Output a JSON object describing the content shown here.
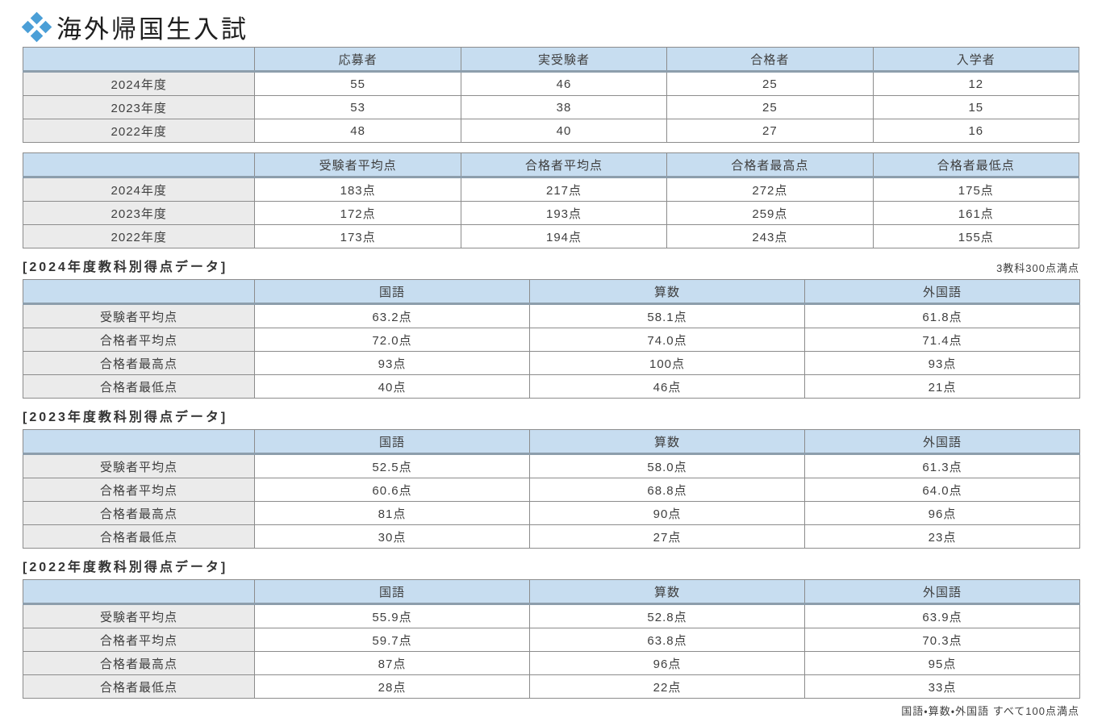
{
  "page": {
    "title": "海外帰国生入試"
  },
  "colors": {
    "header_bg": "#c7ddf0",
    "header_underline": "#8d9eac",
    "label_bg": "#ebebeb",
    "border": "#8c8c8c",
    "icon_blue": "#4b9fd7"
  },
  "summary_table": {
    "columns": [
      "応募者",
      "実受験者",
      "合格者",
      "入学者"
    ],
    "rows": [
      {
        "label": "2024年度",
        "values": [
          "55",
          "46",
          "25",
          "12"
        ]
      },
      {
        "label": "2023年度",
        "values": [
          "53",
          "38",
          "25",
          "15"
        ]
      },
      {
        "label": "2022年度",
        "values": [
          "48",
          "40",
          "27",
          "16"
        ]
      }
    ]
  },
  "score_table": {
    "columns": [
      "受験者平均点",
      "合格者平均点",
      "合格者最高点",
      "合格者最低点"
    ],
    "rows": [
      {
        "label": "2024年度",
        "values": [
          "183点",
          "217点",
          "272点",
          "175点"
        ]
      },
      {
        "label": "2023年度",
        "values": [
          "172点",
          "193点",
          "259点",
          "161点"
        ]
      },
      {
        "label": "2022年度",
        "values": [
          "173点",
          "194点",
          "243点",
          "155点"
        ]
      }
    ],
    "note": "3教科300点満点"
  },
  "subject_sections": [
    {
      "heading": "[2024年度教科別得点データ]",
      "columns": [
        "国語",
        "算数",
        "外国語"
      ],
      "rows": [
        {
          "label": "受験者平均点",
          "values": [
            "63.2点",
            "58.1点",
            "61.8点"
          ]
        },
        {
          "label": "合格者平均点",
          "values": [
            "72.0点",
            "74.0点",
            "71.4点"
          ]
        },
        {
          "label": "合格者最高点",
          "values": [
            "93点",
            "100点",
            "93点"
          ]
        },
        {
          "label": "合格者最低点",
          "values": [
            "40点",
            "46点",
            "21点"
          ]
        }
      ]
    },
    {
      "heading": "[2023年度教科別得点データ]",
      "columns": [
        "国語",
        "算数",
        "外国語"
      ],
      "rows": [
        {
          "label": "受験者平均点",
          "values": [
            "52.5点",
            "58.0点",
            "61.3点"
          ]
        },
        {
          "label": "合格者平均点",
          "values": [
            "60.6点",
            "68.8点",
            "64.0点"
          ]
        },
        {
          "label": "合格者最高点",
          "values": [
            "81点",
            "90点",
            "96点"
          ]
        },
        {
          "label": "合格者最低点",
          "values": [
            "30点",
            "27点",
            "23点"
          ]
        }
      ]
    },
    {
      "heading": "[2022年度教科別得点データ]",
      "columns": [
        "国語",
        "算数",
        "外国語"
      ],
      "rows": [
        {
          "label": "受験者平均点",
          "values": [
            "55.9点",
            "52.8点",
            "63.9点"
          ]
        },
        {
          "label": "合格者平均点",
          "values": [
            "59.7点",
            "63.8点",
            "70.3点"
          ]
        },
        {
          "label": "合格者最高点",
          "values": [
            "87点",
            "96点",
            "95点"
          ]
        },
        {
          "label": "合格者最低点",
          "values": [
            "28点",
            "22点",
            "33点"
          ]
        }
      ]
    }
  ],
  "footer_note": "国語・算数・外国語 すべて100点満点"
}
